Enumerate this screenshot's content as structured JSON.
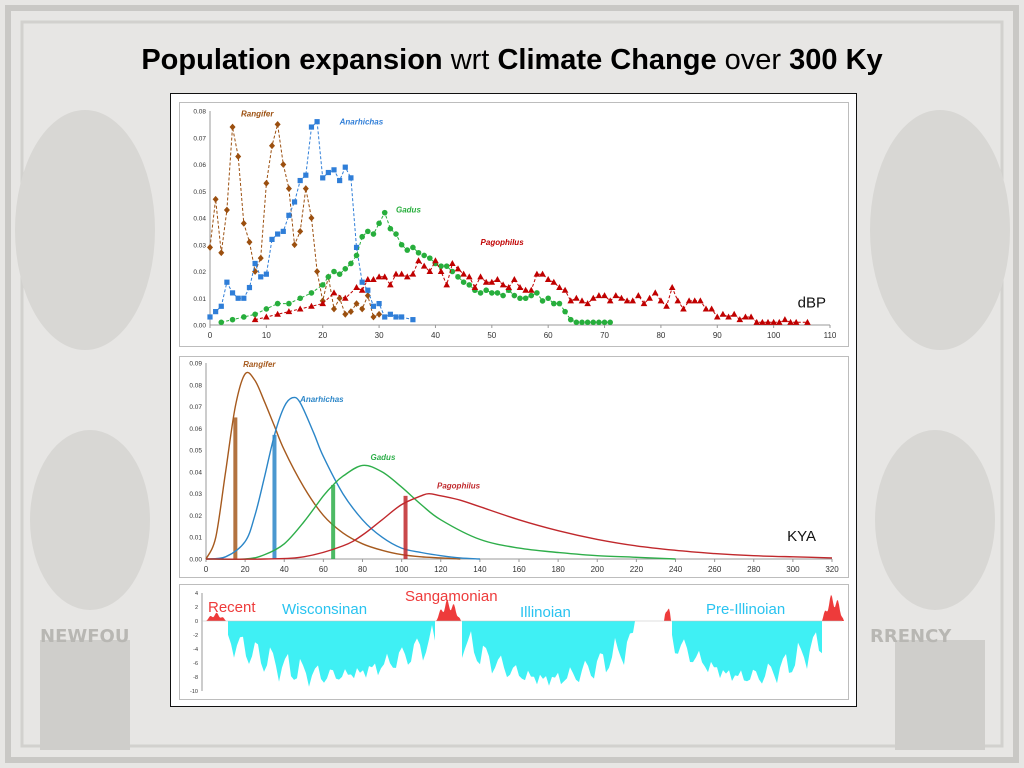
{
  "title": {
    "part1": "Population expansion",
    "part2": "wrt",
    "part3": "Climate Change",
    "part4": "over",
    "part5": "300 Ky"
  },
  "chart_data": [
    {
      "type": "scatter",
      "unit_label": "dBP",
      "xlim": [
        0,
        110
      ],
      "ylim": [
        0,
        0.08
      ],
      "xticks": [
        0,
        10,
        20,
        30,
        40,
        50,
        60,
        70,
        80,
        90,
        100,
        110
      ],
      "yticks": [
        "0.00",
        "0.01",
        "0.02",
        "0.03",
        "0.04",
        "0.05",
        "0.06",
        "0.07",
        "0.08"
      ],
      "series": [
        {
          "name": "Rangifer",
          "color": "#9b4f0f",
          "marker": "diamond",
          "x": [
            0,
            1,
            2,
            3,
            4,
            5,
            6,
            7,
            8,
            9,
            10,
            11,
            12,
            13,
            14,
            15,
            16,
            17,
            18,
            19,
            20,
            21,
            22,
            23,
            24,
            25,
            26,
            27,
            28,
            29,
            30
          ],
          "y": [
            0.029,
            0.047,
            0.027,
            0.043,
            0.074,
            0.063,
            0.038,
            0.031,
            0.02,
            0.025,
            0.053,
            0.067,
            0.075,
            0.06,
            0.051,
            0.03,
            0.035,
            0.051,
            0.04,
            0.02,
            0.009,
            0.018,
            0.006,
            0.01,
            0.004,
            0.005,
            0.008,
            0.006,
            0.011,
            0.003,
            0.004
          ]
        },
        {
          "name": "Anarhichas",
          "color": "#2f7ed8",
          "marker": "square",
          "x": [
            0,
            1,
            2,
            3,
            4,
            5,
            6,
            7,
            8,
            9,
            10,
            11,
            12,
            13,
            14,
            15,
            16,
            17,
            18,
            19,
            20,
            21,
            22,
            23,
            24,
            25,
            26,
            27,
            28,
            29,
            30,
            31,
            32,
            33,
            34,
            36
          ],
          "y": [
            0.003,
            0.005,
            0.007,
            0.016,
            0.012,
            0.01,
            0.01,
            0.014,
            0.023,
            0.018,
            0.019,
            0.032,
            0.034,
            0.035,
            0.041,
            0.046,
            0.054,
            0.056,
            0.074,
            0.076,
            0.055,
            0.057,
            0.058,
            0.054,
            0.059,
            0.055,
            0.029,
            0.016,
            0.013,
            0.007,
            0.008,
            0.003,
            0.004,
            0.003,
            0.003,
            0.002
          ]
        },
        {
          "name": "Gadus",
          "color": "#27ae3c",
          "marker": "circle",
          "x": [
            2,
            4,
            6,
            8,
            10,
            12,
            14,
            16,
            18,
            20,
            21,
            22,
            23,
            24,
            25,
            26,
            27,
            28,
            29,
            30,
            31,
            32,
            33,
            34,
            35,
            36,
            37,
            38,
            39,
            40,
            41,
            42,
            43,
            44,
            45,
            46,
            47,
            48,
            49,
            50,
            51,
            52,
            53,
            54,
            55,
            56,
            57,
            58,
            59,
            60,
            61,
            62,
            63,
            64,
            65,
            66,
            67,
            68,
            69,
            70,
            71
          ],
          "y": [
            0.001,
            0.002,
            0.003,
            0.004,
            0.006,
            0.008,
            0.008,
            0.01,
            0.012,
            0.015,
            0.018,
            0.02,
            0.019,
            0.021,
            0.023,
            0.026,
            0.033,
            0.035,
            0.034,
            0.038,
            0.042,
            0.036,
            0.034,
            0.03,
            0.028,
            0.029,
            0.027,
            0.026,
            0.025,
            0.023,
            0.022,
            0.022,
            0.02,
            0.018,
            0.016,
            0.015,
            0.013,
            0.012,
            0.013,
            0.012,
            0.012,
            0.011,
            0.013,
            0.011,
            0.01,
            0.01,
            0.011,
            0.012,
            0.009,
            0.01,
            0.008,
            0.008,
            0.005,
            0.002,
            0.001,
            0.001,
            0.001,
            0.001,
            0.001,
            0.001,
            0.001
          ]
        },
        {
          "name": "Pagophilus",
          "color": "#c00000",
          "marker": "triangle",
          "x": [
            8,
            10,
            12,
            14,
            16,
            18,
            20,
            22,
            24,
            26,
            27,
            28,
            29,
            30,
            31,
            32,
            33,
            34,
            35,
            36,
            37,
            38,
            39,
            40,
            41,
            42,
            43,
            44,
            45,
            46,
            47,
            48,
            49,
            50,
            51,
            52,
            53,
            54,
            55,
            56,
            57,
            58,
            59,
            60,
            61,
            62,
            63,
            64,
            65,
            66,
            67,
            68,
            69,
            70,
            71,
            72,
            73,
            74,
            75,
            76,
            77,
            78,
            79,
            80,
            81,
            82,
            83,
            84,
            85,
            86,
            87,
            88,
            89,
            90,
            91,
            92,
            93,
            94,
            95,
            96,
            97,
            98,
            99,
            100,
            101,
            102,
            103,
            104,
            106
          ],
          "y": [
            0.002,
            0.003,
            0.004,
            0.005,
            0.006,
            0.007,
            0.008,
            0.012,
            0.01,
            0.014,
            0.013,
            0.017,
            0.017,
            0.018,
            0.018,
            0.015,
            0.019,
            0.019,
            0.018,
            0.019,
            0.024,
            0.022,
            0.02,
            0.024,
            0.02,
            0.015,
            0.023,
            0.021,
            0.019,
            0.018,
            0.014,
            0.018,
            0.016,
            0.016,
            0.017,
            0.015,
            0.014,
            0.017,
            0.014,
            0.013,
            0.013,
            0.019,
            0.019,
            0.017,
            0.016,
            0.014,
            0.013,
            0.009,
            0.01,
            0.009,
            0.008,
            0.01,
            0.011,
            0.011,
            0.009,
            0.011,
            0.01,
            0.009,
            0.009,
            0.011,
            0.008,
            0.01,
            0.012,
            0.009,
            0.007,
            0.014,
            0.009,
            0.006,
            0.009,
            0.009,
            0.009,
            0.006,
            0.006,
            0.003,
            0.004,
            0.003,
            0.004,
            0.002,
            0.003,
            0.003,
            0.001,
            0.001,
            0.001,
            0.001,
            0.001,
            0.002,
            0.001,
            0.001,
            0.001
          ]
        }
      ]
    },
    {
      "type": "line",
      "unit_label": "KYA",
      "xlim": [
        0,
        320
      ],
      "ylim": [
        0,
        0.09
      ],
      "xticks": [
        0,
        20,
        40,
        60,
        80,
        100,
        120,
        140,
        160,
        180,
        200,
        220,
        240,
        260,
        280,
        300,
        320
      ],
      "yticks": [
        "0.00",
        "0.01",
        "0.02",
        "0.03",
        "0.04",
        "0.05",
        "0.06",
        "0.07",
        "0.08",
        "0.09"
      ],
      "series": [
        {
          "name": "Rangifer",
          "color": "#a65a1e",
          "peak_x": 21,
          "peak_y": 0.085,
          "marker_x": 15,
          "marker_y": 0.065,
          "x": [
            0,
            5,
            10,
            15,
            20,
            25,
            30,
            35,
            40,
            50,
            60,
            70,
            80,
            90,
            100,
            110,
            120,
            130
          ],
          "y": [
            0.0,
            0.01,
            0.04,
            0.07,
            0.085,
            0.082,
            0.072,
            0.061,
            0.05,
            0.033,
            0.02,
            0.012,
            0.007,
            0.004,
            0.002,
            0.001,
            0.0005,
            0.0
          ]
        },
        {
          "name": "Anarhichas",
          "color": "#2b86c8",
          "peak_x": 44,
          "peak_y": 0.074,
          "marker_x": 35,
          "marker_y": 0.057,
          "x": [
            0,
            10,
            20,
            25,
            30,
            35,
            40,
            44,
            48,
            55,
            60,
            70,
            80,
            90,
            100,
            110,
            120,
            130,
            140
          ],
          "y": [
            0.0,
            0.001,
            0.008,
            0.02,
            0.038,
            0.057,
            0.07,
            0.074,
            0.072,
            0.058,
            0.047,
            0.03,
            0.018,
            0.01,
            0.005,
            0.003,
            0.0015,
            0.0005,
            0.0
          ]
        },
        {
          "name": "Gadus",
          "color": "#2eae4a",
          "peak_x": 80,
          "peak_y": 0.043,
          "marker_x": 65,
          "marker_y": 0.034,
          "x": [
            0,
            20,
            30,
            40,
            50,
            60,
            65,
            70,
            80,
            90,
            100,
            110,
            120,
            140,
            160,
            180,
            200,
            220,
            240
          ],
          "y": [
            0.0,
            0.0,
            0.002,
            0.007,
            0.017,
            0.029,
            0.034,
            0.038,
            0.043,
            0.04,
            0.033,
            0.025,
            0.018,
            0.009,
            0.005,
            0.003,
            0.0015,
            0.0008,
            0.0
          ]
        },
        {
          "name": "Pagophilus",
          "color": "#c0282c",
          "peak_x": 114,
          "peak_y": 0.03,
          "marker_x": 102,
          "marker_y": 0.029,
          "x": [
            0,
            30,
            50,
            70,
            80,
            90,
            100,
            110,
            114,
            120,
            130,
            140,
            160,
            180,
            200,
            220,
            240,
            260,
            280,
            300,
            320
          ],
          "y": [
            0.0,
            0.0,
            0.001,
            0.006,
            0.011,
            0.018,
            0.025,
            0.029,
            0.03,
            0.029,
            0.027,
            0.024,
            0.018,
            0.013,
            0.009,
            0.006,
            0.004,
            0.0025,
            0.0015,
            0.001,
            0.0005
          ]
        }
      ]
    },
    {
      "type": "area",
      "period_labels": [
        "Recent",
        "Wisconsinan",
        "Sangamonian",
        "Illinoian",
        "Pre-Illinoian"
      ],
      "yticks": [
        "4",
        "2",
        "0",
        "-2",
        "-4",
        "-6",
        "-8",
        "-10"
      ],
      "ylim": [
        -10,
        4
      ],
      "cold_color": "#3ff0f4",
      "warm_color": "#ee3b3b"
    }
  ]
}
